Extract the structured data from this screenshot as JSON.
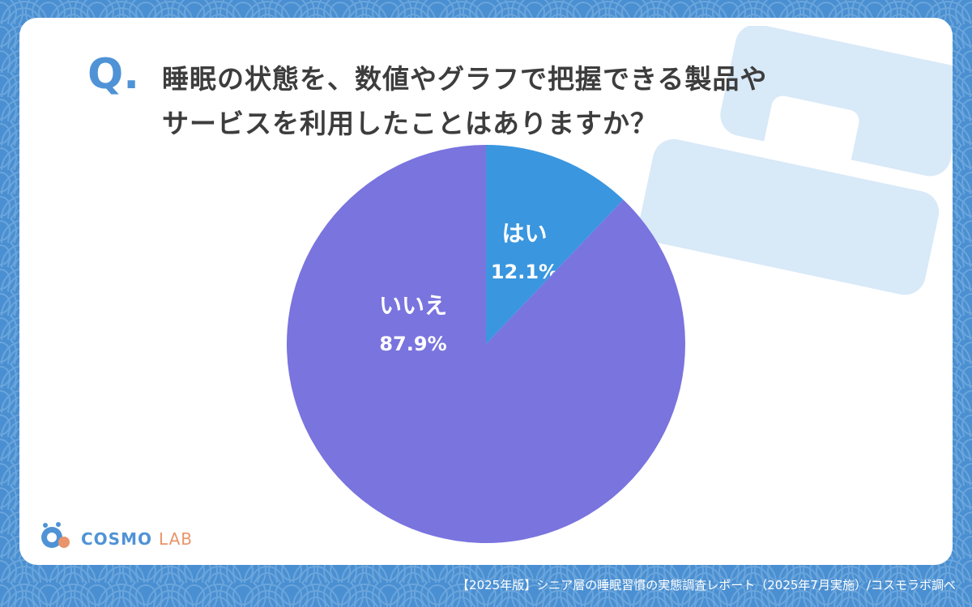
{
  "header": {
    "q_mark": "Q.",
    "question_line1": "睡眠の状態を、数値やグラフで把握できる製品や",
    "question_line2": "サービスを利用したことはありますか？"
  },
  "chart_data": {
    "type": "pie",
    "slices": [
      {
        "label": "はい",
        "value": 12.1,
        "value_label": "12.1%",
        "color": "#3a96df"
      },
      {
        "label": "いいえ",
        "value": 87.9,
        "value_label": "87.9%",
        "color": "#7974de"
      }
    ],
    "title": "",
    "legend": "none"
  },
  "logo": {
    "word1": "COSMO",
    "word2": "LAB"
  },
  "footer": {
    "source": "【2025年版】シニア層の睡眠習慣の実態調査レポート（2025年7月実施）/コスモラボ調べ"
  },
  "colors": {
    "background": "#4a8fd1",
    "card": "#ffffff",
    "accent": "#4f93d6",
    "logo_secondary": "#e9946a"
  }
}
